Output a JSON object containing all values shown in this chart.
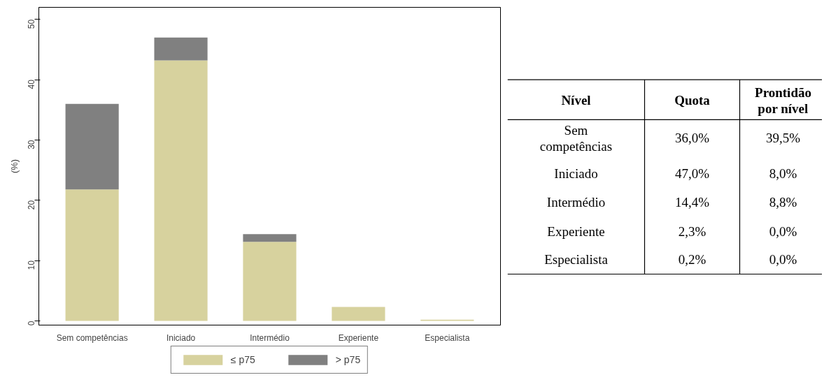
{
  "chart_data": [
    {
      "type": "bar",
      "stacked": true,
      "categories": [
        "Sem competências",
        "Iniciado",
        "Intermédio",
        "Experiente",
        "Especialista"
      ],
      "series": [
        {
          "name": "≤ p75",
          "color": "#d7d29e",
          "values": [
            21.8,
            43.2,
            13.1,
            2.3,
            0.2
          ]
        },
        {
          "name": "> p75",
          "color": "#808080",
          "values": [
            14.2,
            3.8,
            1.3,
            0,
            0
          ]
        }
      ],
      "ylabel": "(%)",
      "ylim": [
        -0.7,
        52
      ],
      "yticks": [
        0,
        10,
        20,
        30,
        40,
        50
      ],
      "grid": false,
      "legend": "bottom"
    },
    {
      "type": "other",
      "annotations": [
        "Nível",
        "Quota",
        "Prontidão\npor nível",
        "Sem\ncompetências",
        "36,0%",
        "39,5%",
        "Iniciado",
        "47,0%",
        "8,0%",
        "Intermédio",
        "14,4%",
        "8,8%",
        "Experiente",
        "2,3%",
        "0,0%",
        "Especialista",
        "0,2%",
        "0,0%"
      ]
    }
  ]
}
